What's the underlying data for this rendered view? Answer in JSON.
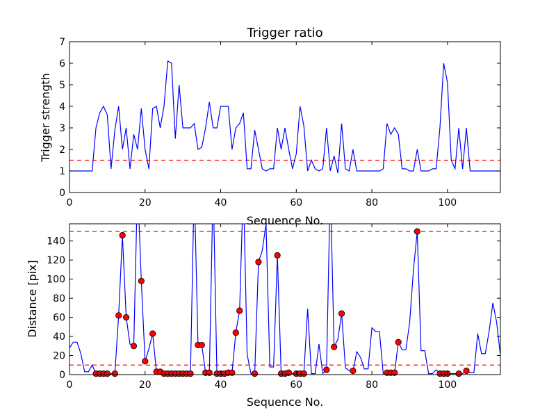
{
  "chart_data": [
    {
      "type": "line",
      "title": "Trigger ratio",
      "xlabel": "Sequence No.",
      "ylabel": "Trigger strength",
      "xlim": [
        0,
        114
      ],
      "ylim": [
        0,
        7
      ],
      "xticks": [
        0,
        20,
        40,
        60,
        80,
        100
      ],
      "yticks": [
        0,
        1,
        2,
        3,
        4,
        5,
        6,
        7
      ],
      "grid": false,
      "threshold": 1.5,
      "colors": {
        "line": "#0000ff",
        "threshold": "#ff0000"
      },
      "series": [
        {
          "x": [
            0,
            1,
            2,
            3,
            4,
            5,
            6,
            7,
            8,
            9,
            10,
            11,
            12,
            13,
            14,
            15,
            16,
            17,
            18,
            19,
            20,
            21,
            22,
            23,
            24,
            25,
            26,
            27,
            28,
            29,
            30,
            31,
            32,
            33,
            34,
            35,
            36,
            37,
            38,
            39,
            40,
            41,
            42,
            43,
            44,
            45,
            46,
            47,
            48,
            49,
            50,
            51,
            52,
            53,
            54,
            55,
            56,
            57,
            58,
            59,
            60,
            61,
            62,
            63,
            64,
            65,
            66,
            67,
            68,
            69,
            70,
            71,
            72,
            73,
            74,
            75,
            76,
            77,
            78,
            79,
            80,
            81,
            82,
            83,
            84,
            85,
            86,
            87,
            88,
            89,
            90,
            91,
            92,
            93,
            94,
            95,
            96,
            97,
            98,
            99,
            100,
            101,
            102,
            103,
            104,
            105,
            106,
            107,
            108,
            109,
            110,
            111,
            112,
            113,
            114
          ],
          "values": [
            1,
            1,
            1,
            1,
            1,
            1,
            1,
            3,
            3.7,
            4,
            3.6,
            1.1,
            2.9,
            4,
            2,
            3,
            1.1,
            2.7,
            2,
            3.9,
            2,
            1.1,
            3.9,
            4,
            3,
            4,
            6.1,
            6,
            2.5,
            5,
            3,
            3,
            3,
            3.2,
            2,
            2.1,
            3,
            4.2,
            3,
            3,
            4,
            4,
            4,
            2,
            3,
            3.2,
            3.7,
            1.1,
            1.1,
            2.9,
            2,
            1.1,
            1,
            1.1,
            1.1,
            3,
            2,
            3,
            2,
            1.1,
            1.8,
            4,
            3.1,
            1,
            1.5,
            1.1,
            1,
            1.1,
            3,
            1,
            1.7,
            0.9,
            3.2,
            1.1,
            1,
            2,
            1,
            1,
            1,
            1,
            1,
            1,
            1,
            1.1,
            3.2,
            2.7,
            3,
            2.7,
            1.1,
            1.1,
            1,
            1,
            2,
            1,
            1,
            1,
            1.1,
            1.1,
            3,
            6,
            5.1,
            1.5,
            1.1,
            3,
            1.1,
            3,
            1,
            1,
            1,
            1,
            1,
            1,
            1,
            1,
            1
          ]
        }
      ]
    },
    {
      "type": "line",
      "title": "",
      "xlabel": "Sequence No.",
      "ylabel": "Distance [pix]",
      "xlim": [
        0,
        114
      ],
      "ylim": [
        0,
        158
      ],
      "xticks": [
        0,
        20,
        40,
        60,
        80,
        100
      ],
      "yticks": [
        0,
        20,
        40,
        60,
        80,
        100,
        120,
        140
      ],
      "grid": false,
      "thresholds": [
        10,
        150
      ],
      "colors": {
        "line": "#0000ff",
        "threshold": "#ff0000",
        "marker": "#ff0000"
      },
      "series": [
        {
          "x": [
            0,
            1,
            2,
            3,
            4,
            5,
            6,
            7,
            8,
            9,
            10,
            11,
            12,
            13,
            14,
            15,
            16,
            17,
            18,
            19,
            20,
            21,
            22,
            23,
            24,
            25,
            26,
            27,
            28,
            29,
            30,
            31,
            32,
            33,
            34,
            35,
            36,
            37,
            38,
            39,
            40,
            41,
            42,
            43,
            44,
            45,
            46,
            47,
            48,
            49,
            50,
            51,
            52,
            53,
            54,
            55,
            56,
            57,
            58,
            59,
            60,
            61,
            62,
            63,
            64,
            65,
            66,
            67,
            68,
            69,
            70,
            71,
            72,
            73,
            74,
            75,
            76,
            77,
            78,
            79,
            80,
            81,
            82,
            83,
            84,
            85,
            86,
            87,
            88,
            89,
            90,
            91,
            92,
            93,
            94,
            95,
            96,
            97,
            98,
            99,
            100,
            101,
            102,
            103,
            104,
            105,
            106,
            107,
            108,
            109,
            110,
            111,
            112,
            113,
            114
          ],
          "values": [
            28,
            34,
            34,
            22,
            3,
            3,
            10,
            1,
            1,
            1,
            1,
            1,
            1,
            62,
            146,
            60,
            32,
            30,
            200,
            98,
            14,
            27,
            43,
            3,
            3,
            1,
            1,
            1,
            1,
            1,
            1,
            1,
            1,
            200,
            31,
            31,
            2,
            2,
            200,
            1,
            1,
            1,
            2,
            2,
            44,
            67,
            200,
            21,
            1,
            1,
            118,
            130,
            158,
            8,
            8,
            125,
            1,
            1,
            2,
            1,
            2,
            1,
            1,
            69,
            1,
            1,
            32,
            1,
            5,
            200,
            29,
            37,
            64,
            7,
            4,
            3,
            24,
            18,
            6,
            6,
            49,
            45,
            45,
            1,
            2,
            2,
            2,
            34,
            26,
            26,
            55,
            110,
            150,
            25,
            25,
            1,
            1,
            5,
            1,
            1,
            1,
            1,
            1,
            1,
            1,
            4,
            2,
            2,
            43,
            22,
            22,
            45,
            75,
            55,
            20
          ]
        }
      ],
      "markers": {
        "x": [
          7,
          8,
          9,
          10,
          12,
          13,
          14,
          15,
          17,
          19,
          20,
          22,
          23,
          24,
          25,
          26,
          27,
          28,
          29,
          30,
          31,
          32,
          34,
          35,
          36,
          37,
          39,
          40,
          41,
          42,
          43,
          44,
          45,
          49,
          50,
          55,
          56,
          57,
          58,
          60,
          61,
          62,
          68,
          70,
          72,
          75,
          84,
          85,
          86,
          87,
          92,
          98,
          99,
          100,
          103,
          105
        ],
        "values": [
          1,
          1,
          1,
          1,
          1,
          62,
          146,
          60,
          30,
          98,
          14,
          43,
          3,
          3,
          1,
          1,
          1,
          1,
          1,
          1,
          1,
          1,
          31,
          31,
          2,
          2,
          1,
          1,
          1,
          2,
          2,
          44,
          67,
          1,
          118,
          125,
          1,
          1,
          2,
          1,
          1,
          1,
          5,
          29,
          64,
          4,
          2,
          2,
          2,
          34,
          150,
          1,
          1,
          1,
          1,
          4
        ]
      }
    }
  ]
}
